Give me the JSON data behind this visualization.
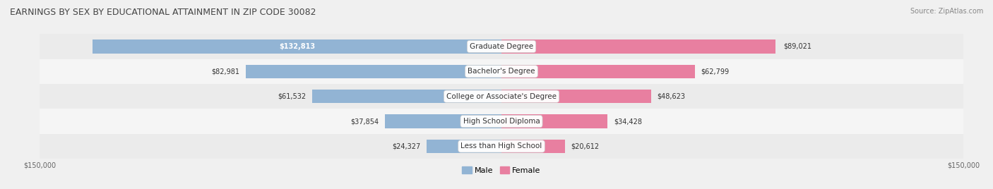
{
  "title": "EARNINGS BY SEX BY EDUCATIONAL ATTAINMENT IN ZIP CODE 30082",
  "source": "Source: ZipAtlas.com",
  "categories": [
    "Less than High School",
    "High School Diploma",
    "College or Associate's Degree",
    "Bachelor's Degree",
    "Graduate Degree"
  ],
  "male_values": [
    24327,
    37854,
    61532,
    82981,
    132813
  ],
  "female_values": [
    20612,
    34428,
    48623,
    62799,
    89021
  ],
  "male_color": "#92b4d4",
  "female_color": "#e87fa0",
  "male_label": "Male",
  "female_label": "Female",
  "max_val": 150000,
  "row_colors": [
    "#ebebeb",
    "#f5f5f5"
  ],
  "title_fontsize": 9,
  "source_fontsize": 7,
  "label_fontsize": 7.5,
  "value_fontsize": 7,
  "axis_label_fontsize": 7,
  "legend_fontsize": 8
}
